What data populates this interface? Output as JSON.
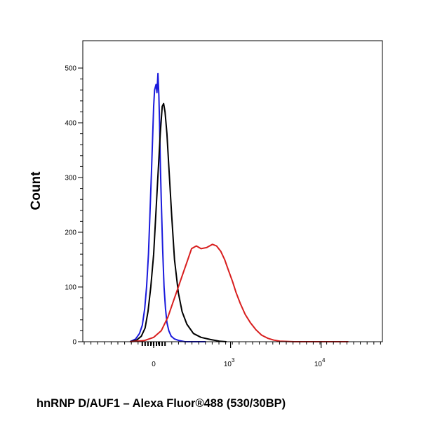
{
  "chart_data": {
    "type": "line",
    "title": "",
    "xlabel": "hnRNP D/AUF1 – Alexa Fluor®488 (530/30BP)",
    "ylabel": "Count",
    "x_scale": "biexponential",
    "x_tick_labels": [
      {
        "base": "0",
        "exp": "",
        "value": 0
      },
      {
        "base": "10",
        "exp": "3",
        "value": 1000
      },
      {
        "base": "10",
        "exp": "4",
        "value": 10000
      }
    ],
    "y_ticks": [
      0,
      100,
      200,
      300,
      400,
      500
    ],
    "ylim": [
      0,
      550
    ],
    "grid": false,
    "series": [
      {
        "color": "#1a1adc",
        "x": [
          -250,
          -190,
          -150,
          -120,
          -95,
          -75,
          -55,
          -40,
          -25,
          -10,
          0,
          10,
          25,
          35,
          45,
          55,
          62,
          70,
          80,
          95,
          110,
          125,
          140,
          160,
          185,
          220,
          270,
          330,
          420,
          550
        ],
        "y": [
          0,
          5,
          15,
          30,
          60,
          100,
          160,
          230,
          300,
          380,
          430,
          460,
          470,
          455,
          490,
          450,
          400,
          330,
          260,
          170,
          100,
          60,
          35,
          20,
          10,
          5,
          2,
          0,
          0,
          0
        ]
      },
      {
        "color": "#000000",
        "x": [
          -250,
          -180,
          -130,
          -90,
          -60,
          -30,
          0,
          25,
          50,
          70,
          90,
          105,
          120,
          140,
          160,
          190,
          220,
          260,
          300,
          350,
          420,
          500,
          600,
          750,
          900
        ],
        "y": [
          0,
          3,
          10,
          25,
          55,
          100,
          160,
          240,
          320,
          380,
          430,
          435,
          420,
          380,
          320,
          230,
          150,
          90,
          55,
          32,
          15,
          8,
          4,
          1,
          0
        ]
      },
      {
        "color": "#d81e1e",
        "x": [
          -250,
          -100,
          0,
          80,
          150,
          200,
          250,
          300,
          350,
          400,
          450,
          500,
          560,
          630,
          700,
          780,
          860,
          950,
          1050,
          1150,
          1280,
          1450,
          1650,
          1900,
          2200,
          2600,
          3000,
          3500,
          5000,
          20000
        ],
        "y": [
          0,
          2,
          8,
          20,
          45,
          70,
          95,
          120,
          145,
          170,
          175,
          170,
          172,
          178,
          175,
          165,
          150,
          130,
          110,
          90,
          70,
          50,
          35,
          22,
          12,
          6,
          3,
          1,
          0,
          0
        ]
      }
    ]
  }
}
